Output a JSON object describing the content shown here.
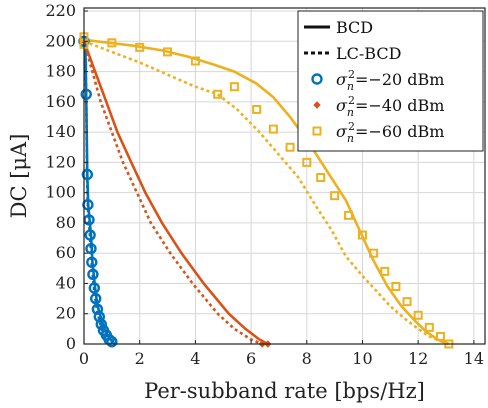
{
  "chart_data": {
    "type": "line",
    "xlabel": "Per-subband rate [bps/Hz]",
    "ylabel": "DC [μA]",
    "xlim": [
      0,
      14.4
    ],
    "ylim": [
      0,
      222
    ],
    "xticks": [
      "0",
      "2",
      "4",
      "6",
      "8",
      "10",
      "12",
      "14"
    ],
    "yticks": [
      "0",
      "20",
      "40",
      "60",
      "80",
      "100",
      "120",
      "140",
      "160",
      "180",
      "200",
      "220"
    ],
    "grid": true,
    "legend": {
      "placement": "top-right",
      "line_styles": [
        {
          "label": "BCD",
          "dash": "solid"
        },
        {
          "label": "LC-BCD",
          "dash": "dotted"
        }
      ],
      "markers": [
        {
          "label": "σ_n^2 = −20 dBm",
          "label_parts": [
            "σ",
            "n",
            "2",
            "=−20 dBm"
          ],
          "color": "#0072BD",
          "marker": "circle"
        },
        {
          "label": "σ_n^2 = −40 dBm",
          "label_parts": [
            "σ",
            "n",
            "2",
            "=−40 dBm"
          ],
          "color": "#D95319",
          "marker": "diamond"
        },
        {
          "label": "σ_n^2 = −60 dBm",
          "label_parts": [
            "σ",
            "n",
            "2",
            "=−60 dBm"
          ],
          "color": "#EDB120",
          "marker": "square"
        }
      ]
    },
    "series": [
      {
        "name": "σ_n^2 = −20 dBm",
        "color": "#0072BD",
        "marker": "circle",
        "style": "solid",
        "points": [
          [
            0,
            200
          ],
          [
            0.05,
            195
          ],
          [
            0.08,
            165
          ],
          [
            0.12,
            112
          ],
          [
            0.15,
            92
          ],
          [
            0.2,
            82
          ],
          [
            0.25,
            72
          ],
          [
            0.28,
            63
          ],
          [
            0.3,
            54
          ],
          [
            0.35,
            46
          ],
          [
            0.4,
            37
          ],
          [
            0.45,
            30
          ],
          [
            0.52,
            23
          ],
          [
            0.6,
            18
          ],
          [
            0.7,
            12
          ],
          [
            0.8,
            7
          ],
          [
            0.9,
            4
          ],
          [
            1.0,
            2
          ],
          [
            1.1,
            0
          ]
        ]
      },
      {
        "name": "σ_n^2 = −20 dBm",
        "color": "#0072BD",
        "marker": "circle",
        "style": "dotted",
        "points": [
          [
            0,
            200
          ],
          [
            0.05,
            193
          ],
          [
            0.08,
            163
          ],
          [
            0.11,
            110
          ],
          [
            0.14,
            90
          ],
          [
            0.18,
            80
          ],
          [
            0.22,
            70
          ],
          [
            0.25,
            61
          ],
          [
            0.28,
            52
          ],
          [
            0.32,
            44
          ],
          [
            0.37,
            35
          ],
          [
            0.42,
            28
          ],
          [
            0.48,
            21
          ],
          [
            0.55,
            16
          ],
          [
            0.63,
            10
          ],
          [
            0.72,
            6
          ],
          [
            0.82,
            3
          ],
          [
            0.92,
            1.5
          ],
          [
            1.0,
            0
          ]
        ]
      },
      {
        "name": "σ_n^2 = −40 dBm",
        "color": "#D95319",
        "marker": "diamond",
        "style": "solid",
        "points": [
          [
            0,
            200
          ],
          [
            0.4,
            180
          ],
          [
            0.8,
            160
          ],
          [
            1.2,
            140
          ],
          [
            1.7,
            120
          ],
          [
            2.2,
            100
          ],
          [
            2.8,
            80
          ],
          [
            3.5,
            60
          ],
          [
            4.3,
            40
          ],
          [
            5.2,
            20
          ],
          [
            5.8,
            10
          ],
          [
            6.3,
            3
          ],
          [
            6.6,
            0
          ]
        ]
      },
      {
        "name": "σ_n^2 = −40 dBm",
        "color": "#D95319",
        "marker": "diamond",
        "style": "dotted",
        "points": [
          [
            0,
            200
          ],
          [
            0.3,
            180
          ],
          [
            0.6,
            160
          ],
          [
            1.0,
            140
          ],
          [
            1.4,
            120
          ],
          [
            1.9,
            100
          ],
          [
            2.4,
            80
          ],
          [
            3.1,
            60
          ],
          [
            3.9,
            40
          ],
          [
            4.8,
            20
          ],
          [
            5.4,
            10
          ],
          [
            6.0,
            3
          ],
          [
            6.4,
            0
          ]
        ]
      },
      {
        "name": "σ_n^2 = −60 dBm",
        "color": "#EDB120",
        "marker": "square",
        "style": "solid",
        "points": [
          [
            0,
            201
          ],
          [
            0.9,
            199
          ],
          [
            1.8,
            197
          ],
          [
            2.8,
            194
          ],
          [
            3.7,
            190
          ],
          [
            4.6,
            185
          ],
          [
            5.4,
            180
          ],
          [
            6.2,
            172
          ],
          [
            6.8,
            163
          ],
          [
            7.4,
            150
          ],
          [
            8.0,
            135
          ],
          [
            8.7,
            115
          ],
          [
            9.4,
            95
          ],
          [
            9.9,
            75
          ],
          [
            10.4,
            55
          ],
          [
            10.9,
            38
          ],
          [
            11.4,
            25
          ],
          [
            11.9,
            15
          ],
          [
            12.3,
            8
          ],
          [
            12.7,
            3
          ],
          [
            13.1,
            0
          ]
        ]
      },
      {
        "name": "σ_n^2 = −60 dBm",
        "color": "#EDB120",
        "marker": "square",
        "style": "dotted",
        "points": [
          [
            0,
            200
          ],
          [
            1.0,
            193
          ],
          [
            2.0,
            186
          ],
          [
            3.0,
            178
          ],
          [
            4.0,
            170
          ],
          [
            4.8,
            165
          ],
          [
            5.5,
            155
          ],
          [
            6.3,
            140
          ],
          [
            7.0,
            125
          ],
          [
            7.7,
            110
          ],
          [
            8.3,
            92
          ],
          [
            8.9,
            75
          ],
          [
            9.4,
            58
          ],
          [
            10.0,
            45
          ],
          [
            10.5,
            35
          ],
          [
            11.0,
            25
          ],
          [
            11.5,
            17
          ],
          [
            12.0,
            10
          ],
          [
            12.4,
            5
          ],
          [
            12.8,
            2
          ],
          [
            13.1,
            0
          ]
        ]
      }
    ],
    "marker_points": {
      "blue": [
        [
          0,
          200
        ],
        [
          0.08,
          165
        ],
        [
          0.12,
          112
        ],
        [
          0.14,
          92
        ],
        [
          0.18,
          82
        ],
        [
          0.22,
          72
        ],
        [
          0.25,
          63
        ],
        [
          0.28,
          54
        ],
        [
          0.32,
          46
        ],
        [
          0.37,
          37
        ],
        [
          0.42,
          30
        ],
        [
          0.48,
          23
        ],
        [
          0.55,
          18
        ],
        [
          0.62,
          13
        ],
        [
          0.7,
          9
        ],
        [
          0.8,
          6
        ],
        [
          0.9,
          3
        ],
        [
          1.0,
          1.5
        ]
      ],
      "orange": [
        [
          0,
          200
        ],
        [
          6.6,
          0
        ],
        [
          6.4,
          0
        ]
      ],
      "yellow": [
        [
          0,
          203
        ],
        [
          0,
          198
        ],
        [
          1.0,
          199
        ],
        [
          2.0,
          196
        ],
        [
          3.0,
          193
        ],
        [
          4.0,
          187
        ],
        [
          4.8,
          165
        ],
        [
          5.4,
          170
        ],
        [
          6.2,
          155
        ],
        [
          6.8,
          142
        ],
        [
          7.4,
          130
        ],
        [
          8.0,
          120
        ],
        [
          8.5,
          110
        ],
        [
          9.0,
          98
        ],
        [
          9.5,
          85
        ],
        [
          10.0,
          72
        ],
        [
          10.4,
          60
        ],
        [
          10.8,
          48
        ],
        [
          11.2,
          38
        ],
        [
          11.6,
          28
        ],
        [
          12.0,
          19
        ],
        [
          12.4,
          11
        ],
        [
          12.8,
          5
        ],
        [
          13.1,
          0
        ]
      ]
    }
  }
}
